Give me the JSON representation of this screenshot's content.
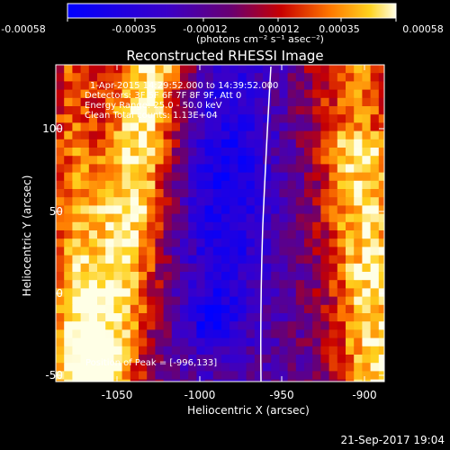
{
  "colorbar": {
    "ticks": [
      "-0.00058",
      "-0.00035",
      "-0.00012",
      "0.00012",
      "0.00035",
      "0.00058"
    ],
    "units": "(photons cm⁻² s⁻¹ asec⁻²)",
    "range": [
      -0.00058,
      0.00058
    ]
  },
  "title": "Reconstructed RHESSI Image",
  "info": {
    "time": "1-Apr-2015 14:29:52.000 to 14:39:52.000",
    "detectors": "Detectors: 3F 5F 6F 7F 8F 9F, Att 0",
    "energy": "Energy Range: 25.0 - 50.0 keV",
    "method": "Clean     Total counts: 1.13E+04"
  },
  "axes": {
    "xlabel": "Heliocentric X (arcsec)",
    "ylabel": "Heliocentric Y (arcsec)",
    "xticks": [
      "-1050",
      "-1000",
      "-950",
      "-900"
    ],
    "yticks": [
      "100",
      "50",
      "0",
      "-50"
    ],
    "xrange": [
      -1075,
      -885
    ],
    "yrange": [
      -53,
      130
    ]
  },
  "peak": "Position of Peak = [-996,133]",
  "datestamp": "21-Sep-2017 19:04",
  "colors": {
    "background": "#000000",
    "limb": "#ffffff"
  }
}
